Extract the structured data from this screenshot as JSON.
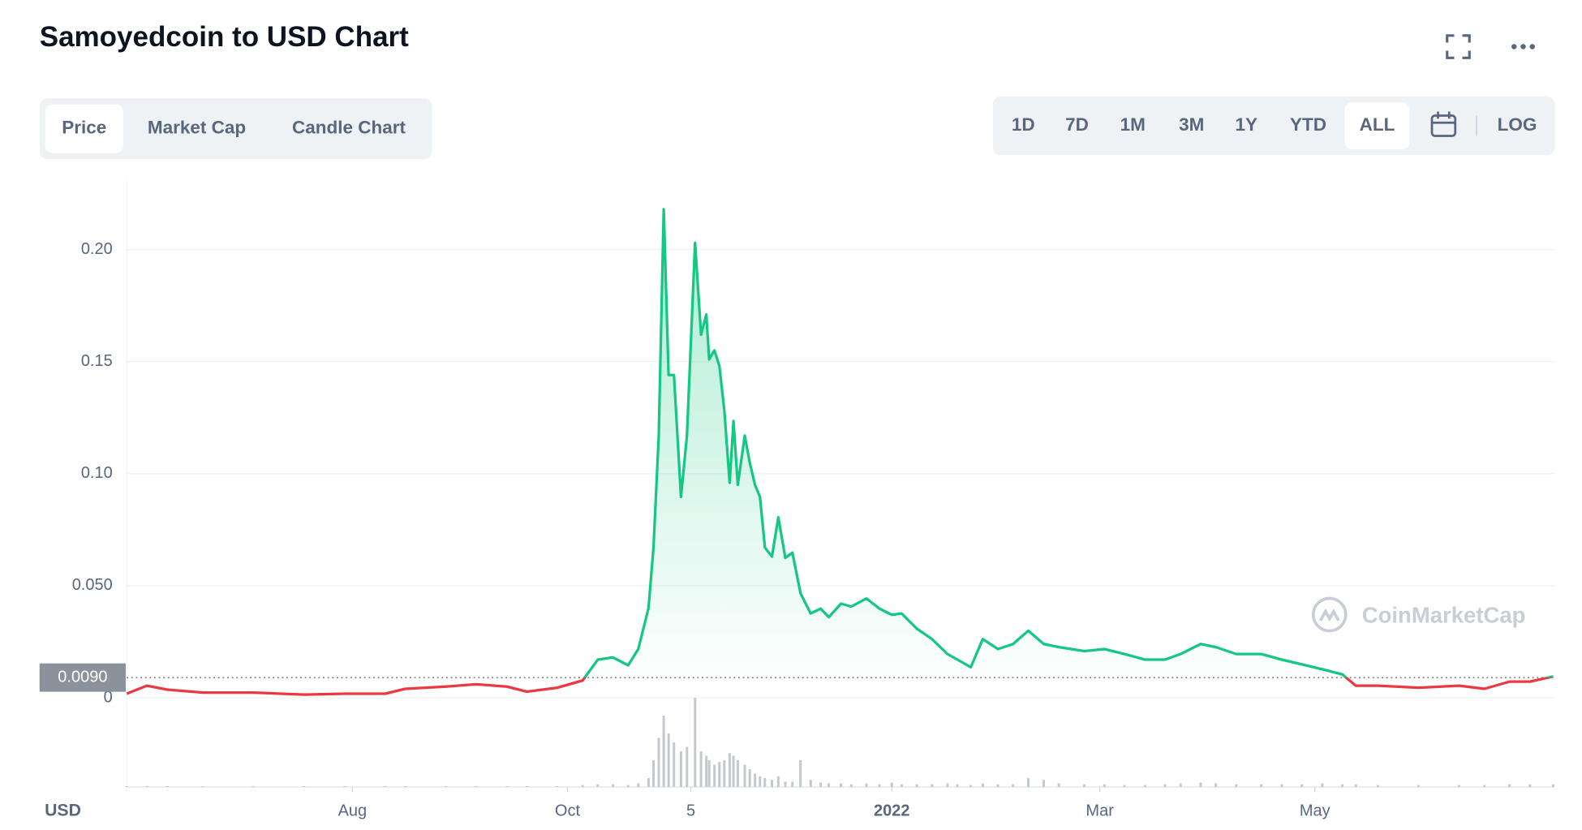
{
  "tabs": [
    "Price",
    "Market Cap",
    "Candle Chart"
  ],
  "active_tab": 0,
  "ranges": [
    "1D",
    "7D",
    "1M",
    "3M",
    "1Y",
    "YTD",
    "ALL"
  ],
  "active_range": 6,
  "log_button": "LOG",
  "watermark": "CoinMarketCap",
  "chart_data": {
    "type": "line",
    "title": "Samoyedcoin to USD Chart",
    "y_label": "USD",
    "x": [
      0,
      5.7,
      11.5,
      21.6,
      35.9,
      50.3,
      61.8,
      73.3,
      79.0,
      90.5,
      99.1,
      107.8,
      113.5,
      122.1,
      129.3,
      133.6,
      137.9,
      142.2,
      145.1,
      148.0,
      149.4,
      150.9,
      152.3,
      153.7,
      155.2,
      157.2,
      158.9,
      161.2,
      162.9,
      164.4,
      165.2,
      166.7,
      168.1,
      169.5,
      171.0,
      172.1,
      173.3,
      175.3,
      176.7,
      178.2,
      179.6,
      181.0,
      183.0,
      184.8,
      186.8,
      188.8,
      191.1,
      194.0,
      196.8,
      199.1,
      202.6,
      205.5,
      209.8,
      213.5,
      217.0,
      219.8,
      224.1,
      228.4,
      232.8,
      235.6,
      239.4,
      242.8,
      247.1,
      251.4,
      255.7,
      260.1,
      264.4,
      271.6,
      277.3,
      283.0,
      288.8,
      294.5,
      298.9,
      304.6,
      308.9,
      314.7,
      321.8,
      327.6,
      333.3,
      339.1,
      344.8,
      348.6,
      354.9,
      366.4,
      377.9,
      385.1,
      392.2,
      398.0,
      404.6
    ],
    "values": [
      0.0018,
      0.0054,
      0.0036,
      0.0023,
      0.0023,
      0.0014,
      0.0018,
      0.0018,
      0.004,
      0.005,
      0.006,
      0.005,
      0.0027,
      0.0045,
      0.0077,
      0.017,
      0.018,
      0.0145,
      0.0217,
      0.04,
      0.067,
      0.117,
      0.218,
      0.144,
      0.144,
      0.0896,
      0.117,
      0.203,
      0.162,
      0.171,
      0.151,
      0.155,
      0.148,
      0.128,
      0.096,
      0.1235,
      0.095,
      0.117,
      0.105,
      0.095,
      0.0896,
      0.067,
      0.063,
      0.0805,
      0.0624,
      0.0647,
      0.0466,
      0.0376,
      0.0398,
      0.036,
      0.042,
      0.0407,
      0.0443,
      0.0398,
      0.037,
      0.0376,
      0.0308,
      0.0262,
      0.0195,
      0.017,
      0.0136,
      0.0262,
      0.0217,
      0.024,
      0.0299,
      0.024,
      0.0226,
      0.0208,
      0.0217,
      0.0195,
      0.017,
      0.017,
      0.0195,
      0.024,
      0.0226,
      0.0195,
      0.0195,
      0.017,
      0.0149,
      0.0127,
      0.0104,
      0.0054,
      0.0054,
      0.0045,
      0.0054,
      0.004,
      0.0072,
      0.0072,
      0.0095
    ],
    "volume": {
      "values": [
        1,
        1,
        1,
        1,
        1,
        1,
        1,
        1,
        1,
        1,
        1,
        1,
        1,
        1,
        2,
        3,
        3,
        2,
        4,
        10,
        30,
        55,
        80,
        60,
        50,
        40,
        45,
        100,
        40,
        35,
        30,
        25,
        28,
        30,
        38,
        35,
        30,
        25,
        20,
        15,
        12,
        10,
        8,
        12,
        6,
        6,
        30,
        8,
        5,
        4,
        4,
        3,
        4,
        3,
        5,
        3,
        3,
        3,
        4,
        3,
        2,
        4,
        3,
        3,
        10,
        8,
        4,
        3,
        3,
        2,
        2,
        3,
        4,
        5,
        4,
        3,
        3,
        3,
        3,
        4,
        3,
        3,
        2,
        2,
        2,
        2,
        3,
        3,
        3
      ],
      "max": 100,
      "color": "#c4c8cf"
    },
    "up_color": "#16c784",
    "down_color": "#ea3943",
    "reference": {
      "value": 0.009,
      "label": "0.0090"
    },
    "xlim": [
      0,
      405
    ],
    "xticks": [
      {
        "value": 64,
        "label": "Aug"
      },
      {
        "value": 125,
        "label": "Oct"
      },
      {
        "value": 160,
        "label": "5"
      },
      {
        "value": 217,
        "label": "2022"
      },
      {
        "value": 276,
        "label": "Mar"
      },
      {
        "value": 337,
        "label": "May"
      }
    ],
    "ylim": [
      0,
      0.2308
    ],
    "yticks": [
      0,
      {
        "value": 0.05,
        "label": "0.050"
      },
      {
        "value": 0.1,
        "label": "0.10"
      },
      {
        "value": 0.15,
        "label": "0.15"
      },
      {
        "value": 0.2,
        "label": "0.20"
      }
    ],
    "grid": true
  }
}
